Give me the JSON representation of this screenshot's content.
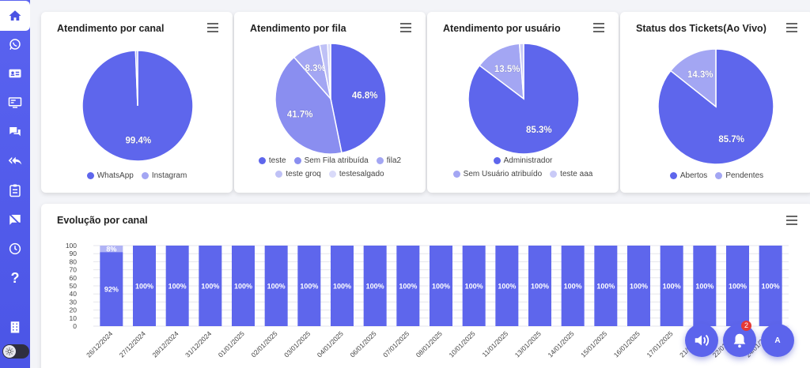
{
  "sidebar": {
    "items": [
      {
        "icon": "home-icon",
        "active": true
      },
      {
        "icon": "whatsapp-icon"
      },
      {
        "icon": "contacts-card-icon"
      },
      {
        "icon": "monitor-dashboard-icon"
      },
      {
        "icon": "chat-bubbles-icon"
      },
      {
        "icon": "reply-all-icon"
      },
      {
        "icon": "clipboard-list-icon"
      },
      {
        "icon": "no-messages-icon"
      },
      {
        "icon": "clock-icon"
      },
      {
        "icon": "help-icon",
        "text": "?"
      },
      {
        "icon": "building-icon"
      }
    ],
    "theme_toggle": {
      "icon": "sun-icon"
    }
  },
  "cards": {
    "canal": {
      "title": "Atendimento por canal",
      "slices": [
        {
          "label": "WhatsApp",
          "value": 99.4,
          "text": "99.4%",
          "color": "#5e66ec"
        },
        {
          "label": "Instagram",
          "value": 0.6,
          "text": "",
          "color": "#a3a6f3"
        }
      ]
    },
    "fila": {
      "title": "Atendimento por fila",
      "slices": [
        {
          "label": "teste",
          "value": 46.8,
          "text": "46.8%",
          "color": "#5e66ec"
        },
        {
          "label": "Sem Fila atribuída",
          "value": 41.7,
          "text": "41.7%",
          "color": "#8a8ef0"
        },
        {
          "label": "fila2",
          "value": 8.3,
          "text": "8.3%",
          "color": "#a3a6f3"
        },
        {
          "label": "teste groq",
          "value": 2.3,
          "text": "",
          "color": "#bfc1f6"
        },
        {
          "label": "testesalgado",
          "value": 0.9,
          "text": "",
          "color": "#d9daf9"
        }
      ]
    },
    "usuario": {
      "title": "Atendimento por usuário",
      "slices": [
        {
          "label": "Administrador",
          "value": 85.3,
          "text": "85.3%",
          "color": "#5e66ec"
        },
        {
          "label": "Sem Usuário atribuído",
          "value": 13.5,
          "text": "13.5%",
          "color": "#a3a6f3"
        },
        {
          "label": "teste aaa",
          "value": 1.2,
          "text": "",
          "color": "#c9caf7"
        }
      ]
    },
    "status": {
      "title": "Status dos Tickets(Ao Vivo)",
      "slices": [
        {
          "label": "Abertos",
          "value": 85.7,
          "text": "85.7%",
          "color": "#5e66ec"
        },
        {
          "label": "Pendentes",
          "value": 14.3,
          "text": "14.3%",
          "color": "#a3a6f3"
        }
      ]
    }
  },
  "evolucao": {
    "title": "Evolução por canal"
  },
  "chart_data": {
    "type": "bar",
    "stacked": true,
    "categories": [
      "26/12/2024",
      "27/12/2024",
      "28/12/2024",
      "31/12/2024",
      "01/01/2025",
      "02/01/2025",
      "03/01/2025",
      "04/01/2025",
      "06/01/2025",
      "07/01/2025",
      "08/01/2025",
      "10/01/2025",
      "11/01/2025",
      "13/01/2025",
      "14/01/2025",
      "15/01/2025",
      "16/01/2025",
      "17/01/2025",
      "21/01/2025",
      "22/01/2025",
      "24/01/2025"
    ],
    "series": [
      {
        "values": [
          92,
          100,
          100,
          100,
          100,
          100,
          100,
          100,
          100,
          100,
          100,
          100,
          100,
          100,
          100,
          100,
          100,
          100,
          100,
          100,
          100
        ],
        "color": "#5e66ec"
      },
      {
        "values": [
          8,
          0,
          0,
          0,
          0,
          0,
          0,
          0,
          0,
          0,
          0,
          0,
          0,
          0,
          0,
          0,
          0,
          0,
          0,
          0,
          0
        ],
        "color": "#b0b3f5"
      }
    ],
    "ylim": [
      0,
      100
    ],
    "yticks": [
      0,
      10,
      20,
      30,
      40,
      50,
      60,
      70,
      80,
      90,
      100
    ],
    "grid": true
  },
  "fabs": {
    "notifications_count": "2",
    "avatar_letter": "A"
  }
}
